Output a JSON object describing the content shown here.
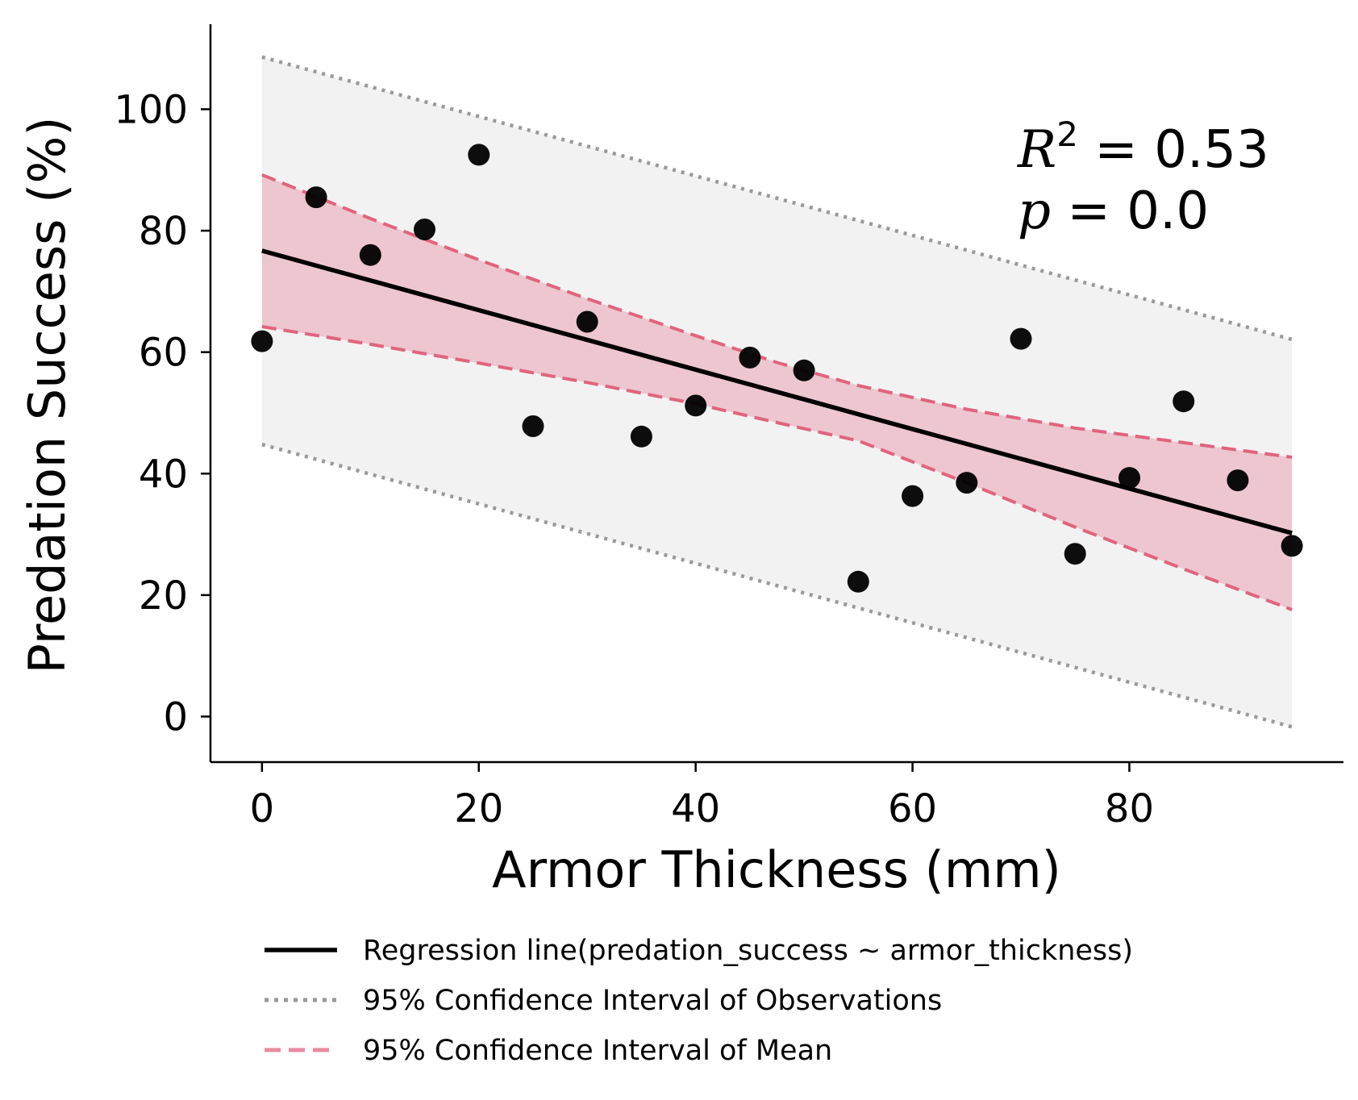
{
  "chart_data": {
    "type": "scatter",
    "xlabel": "Armor Thickness (mm)",
    "ylabel": "Predation Success (%)",
    "xlim": [
      -4.75,
      99.75
    ],
    "ylim": [
      -7.5,
      114
    ],
    "xticks": [
      0,
      20,
      40,
      60,
      80
    ],
    "yticks": [
      0,
      20,
      40,
      60,
      80,
      100
    ],
    "grid": false,
    "legend_position": "bottom-center (below axes)",
    "series": [
      {
        "name": "",
        "kind": "points",
        "x": [
          0,
          5,
          10,
          15,
          20,
          25,
          30,
          35,
          40,
          45,
          50,
          55,
          60,
          65,
          70,
          75,
          80,
          85,
          90,
          95
        ],
        "y": [
          61.8,
          85.5,
          76.0,
          80.2,
          92.5,
          47.8,
          65.0,
          46.1,
          51.2,
          59.1,
          57.0,
          22.2,
          36.3,
          38.5,
          62.2,
          26.8,
          39.3,
          51.9,
          38.9,
          28.1
        ]
      },
      {
        "name": "Regression line(predation_success ~ armor_thickness)",
        "kind": "line",
        "x": [
          0,
          95
        ],
        "y": [
          76.7,
          30.2
        ]
      },
      {
        "name": "95% Confidence Interval of Observations",
        "kind": "band",
        "x": [
          0,
          95
        ],
        "upper": [
          108.6,
          62.1
        ],
        "lower": [
          44.8,
          -1.7
        ]
      },
      {
        "name": "95% Confidence Interval of Mean",
        "kind": "band",
        "x": [
          0,
          10,
          20,
          30,
          40,
          47.5,
          55,
          65,
          75,
          85,
          95
        ],
        "upper": [
          89.2,
          82.0,
          75.2,
          68.8,
          62.7,
          58.3,
          54.5,
          50.6,
          47.5,
          45.1,
          42.7
        ],
        "lower": [
          64.2,
          61.3,
          58.2,
          55.0,
          51.5,
          48.4,
          45.4,
          38.5,
          31.2,
          24.3,
          17.6
        ]
      }
    ],
    "annotations": [
      {
        "label_r2": "R",
        "label_sup": "2",
        "text": " = 0.53"
      },
      {
        "label_p": "p",
        "text": " = 0.0"
      }
    ],
    "colors": {
      "points": "#000000",
      "regression": "#000000",
      "obs_line": "#999999",
      "obs_fill": "#f2f2f2",
      "mean_line": "#e0647f",
      "mean_fill": "#edc6cf"
    }
  }
}
